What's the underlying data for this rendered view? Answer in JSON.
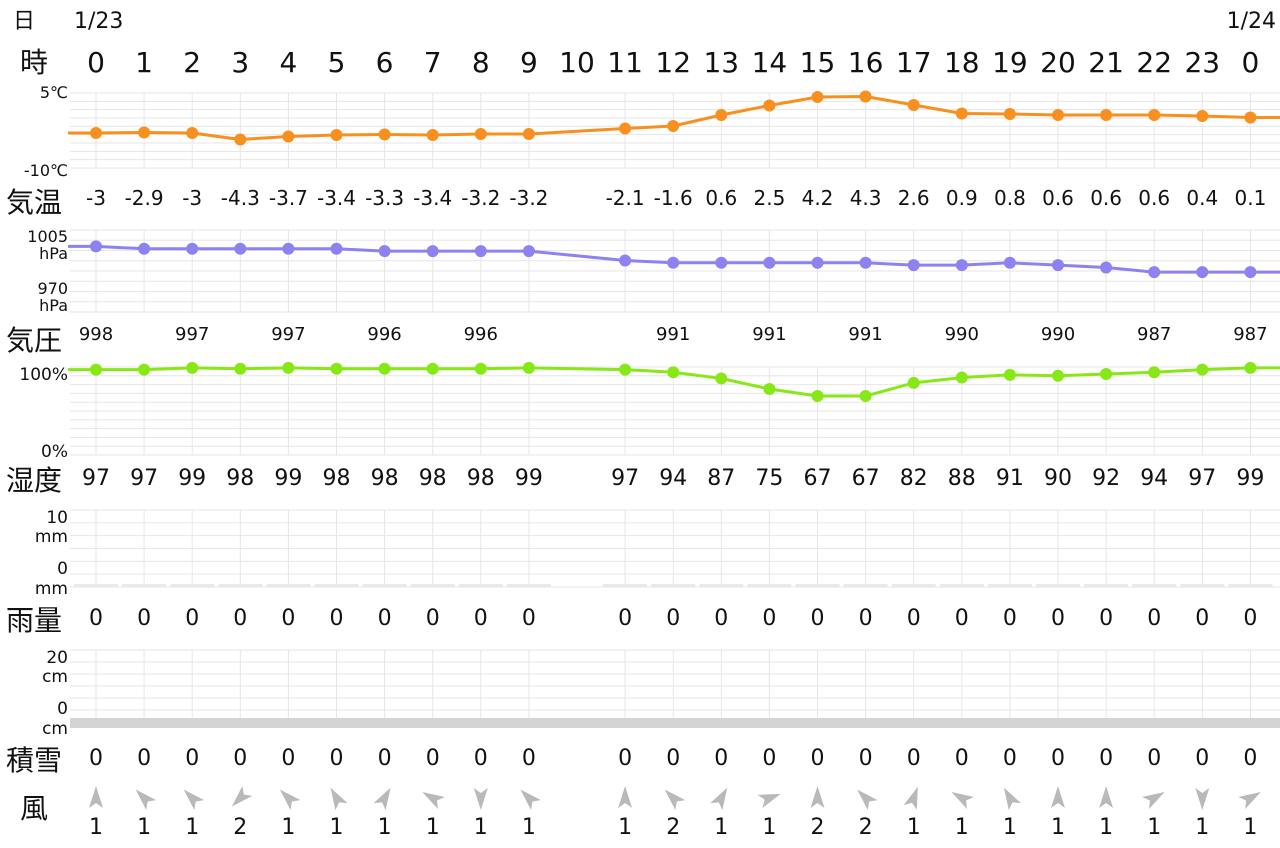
{
  "date_row": {
    "label": "日",
    "start_date": "1/23",
    "end_date": "1/24"
  },
  "hour_row": {
    "label": "時",
    "hours": [
      0,
      1,
      2,
      3,
      4,
      5,
      6,
      7,
      8,
      9,
      10,
      11,
      12,
      13,
      14,
      15,
      16,
      17,
      18,
      19,
      20,
      21,
      22,
      23,
      0
    ]
  },
  "row_labels": {
    "temperature": "気温",
    "pressure": "気圧",
    "humidity": "湿度",
    "rain": "雨量",
    "snow": "積雪",
    "wind": "風"
  },
  "axis_labels": {
    "temperature": {
      "top": "5℃",
      "bottom": "-10℃"
    },
    "pressure": {
      "top": [
        "1005",
        "hPa"
      ],
      "bottom": [
        "970",
        "hPa"
      ]
    },
    "humidity": {
      "top": "100%",
      "bottom": "0%"
    },
    "rain": {
      "top": [
        "10",
        "mm"
      ],
      "bottom": [
        "0",
        "mm"
      ]
    },
    "snow": {
      "top": [
        "20",
        "cm"
      ],
      "bottom": [
        "0",
        "cm"
      ]
    }
  },
  "colors": {
    "temperature": "#f7901e",
    "pressure": "#8c82f0",
    "humidity": "#88e817",
    "wind_arrow": "#b9b9b9",
    "grid": "#e6e6e6",
    "gap": "#e9e9e9"
  },
  "chart_data": [
    {
      "type": "line",
      "name": "気温",
      "unit": "℃",
      "ylim": [
        -10,
        5
      ],
      "x": [
        0,
        1,
        2,
        3,
        4,
        5,
        6,
        7,
        8,
        9,
        11,
        12,
        13,
        14,
        15,
        16,
        17,
        18,
        19,
        20,
        21,
        22,
        23,
        24
      ],
      "values": [
        -3,
        -2.9,
        -3,
        -4.3,
        -3.7,
        -3.4,
        -3.3,
        -3.4,
        -3.2,
        -3.2,
        -2.1,
        -1.6,
        0.6,
        2.5,
        4.2,
        4.3,
        2.6,
        0.9,
        0.8,
        0.6,
        0.6,
        0.6,
        0.4,
        0.1
      ],
      "labels": [
        "-3",
        "-2.9",
        "-3",
        "-4.3",
        "-3.7",
        "-3.4",
        "-3.3",
        "-3.4",
        "-3.2",
        "-3.2",
        "-2.1",
        "-1.6",
        "0.6",
        "2.5",
        "4.2",
        "4.3",
        "2.6",
        "0.9",
        "0.8",
        "0.6",
        "0.6",
        "0.6",
        "0.4",
        "0.1"
      ]
    },
    {
      "type": "line",
      "name": "気圧",
      "unit": "hPa",
      "ylim": [
        970,
        1005
      ],
      "x": [
        0,
        1,
        2,
        3,
        4,
        5,
        6,
        7,
        8,
        9,
        11,
        12,
        13,
        14,
        15,
        16,
        17,
        18,
        19,
        20,
        21,
        22,
        23,
        24
      ],
      "values": [
        998,
        997,
        997,
        997,
        997,
        997,
        996,
        996,
        996,
        996,
        992,
        991,
        991,
        991,
        991,
        991,
        990,
        990,
        991,
        990,
        989,
        987,
        987,
        987
      ],
      "labels": [
        "998",
        "",
        "997",
        "",
        "997",
        "",
        "996",
        "",
        "996",
        "",
        "",
        "991",
        "",
        "991",
        "",
        "991",
        "",
        "990",
        "",
        "990",
        "",
        "987",
        "",
        "987"
      ]
    },
    {
      "type": "line",
      "name": "湿度",
      "unit": "%",
      "ylim": [
        0,
        100
      ],
      "x": [
        0,
        1,
        2,
        3,
        4,
        5,
        6,
        7,
        8,
        9,
        11,
        12,
        13,
        14,
        15,
        16,
        17,
        18,
        19,
        20,
        21,
        22,
        23,
        24
      ],
      "values": [
        97,
        97,
        99,
        98,
        99,
        98,
        98,
        98,
        98,
        99,
        97,
        94,
        87,
        75,
        67,
        67,
        82,
        88,
        91,
        90,
        92,
        94,
        97,
        99
      ],
      "labels": [
        "97",
        "97",
        "99",
        "98",
        "99",
        "98",
        "98",
        "98",
        "98",
        "99",
        "97",
        "94",
        "87",
        "75",
        "67",
        "67",
        "82",
        "88",
        "91",
        "90",
        "92",
        "94",
        "97",
        "99"
      ]
    },
    {
      "type": "bar",
      "name": "雨量",
      "unit": "mm",
      "ylim": [
        0,
        10
      ],
      "x": [
        0,
        1,
        2,
        3,
        4,
        5,
        6,
        7,
        8,
        9,
        11,
        12,
        13,
        14,
        15,
        16,
        17,
        18,
        19,
        20,
        21,
        22,
        23,
        24
      ],
      "values": [
        0,
        0,
        0,
        0,
        0,
        0,
        0,
        0,
        0,
        0,
        0,
        0,
        0,
        0,
        0,
        0,
        0,
        0,
        0,
        0,
        0,
        0,
        0,
        0
      ]
    },
    {
      "type": "bar",
      "name": "積雪",
      "unit": "cm",
      "ylim": [
        0,
        20
      ],
      "x": [
        0,
        1,
        2,
        3,
        4,
        5,
        6,
        7,
        8,
        9,
        11,
        12,
        13,
        14,
        15,
        16,
        17,
        18,
        19,
        20,
        21,
        22,
        23,
        24
      ],
      "values": [
        0,
        0,
        0,
        0,
        0,
        0,
        0,
        0,
        0,
        0,
        0,
        0,
        0,
        0,
        0,
        0,
        0,
        0,
        0,
        0,
        0,
        0,
        0,
        0
      ]
    },
    {
      "type": "table",
      "name": "風",
      "x": [
        0,
        1,
        2,
        3,
        4,
        5,
        6,
        7,
        8,
        9,
        11,
        12,
        13,
        14,
        15,
        16,
        17,
        18,
        19,
        20,
        21,
        22,
        23,
        24
      ],
      "speed": [
        1,
        1,
        1,
        2,
        1,
        1,
        1,
        1,
        1,
        1,
        1,
        2,
        1,
        1,
        2,
        2,
        1,
        1,
        1,
        1,
        1,
        1,
        1,
        1
      ],
      "direction_deg": [
        0,
        315,
        315,
        225,
        315,
        330,
        30,
        300,
        180,
        315,
        0,
        315,
        30,
        70,
        0,
        315,
        20,
        300,
        330,
        0,
        0,
        60,
        180,
        60
      ]
    }
  ]
}
